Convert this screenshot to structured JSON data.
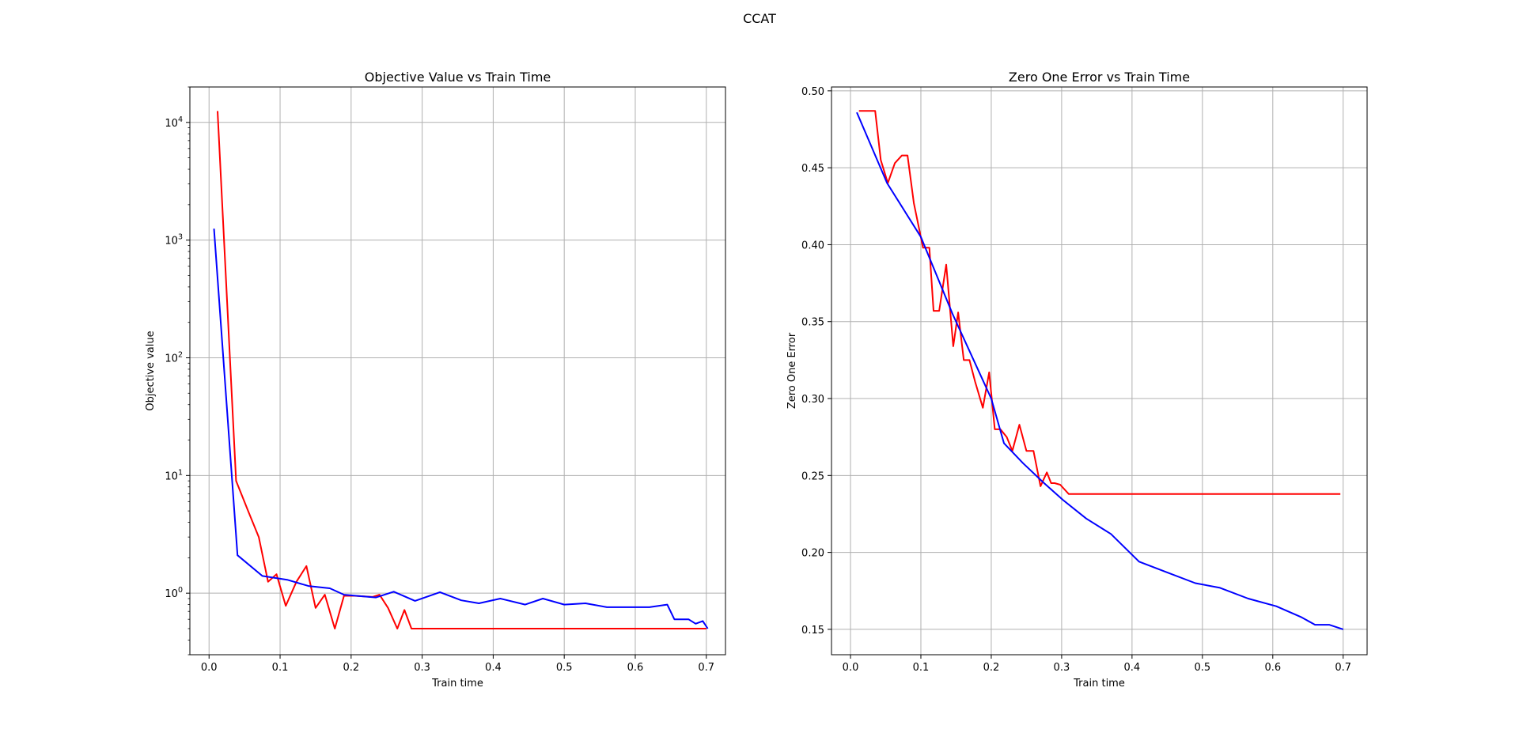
{
  "figure": {
    "title": "CCAT"
  },
  "chart_data": [
    {
      "type": "line",
      "title": "Objective Value vs Train Time",
      "xlabel": "Train time",
      "ylabel": "Objective value",
      "yscale": "log",
      "xlim": [
        -0.027,
        0.727
      ],
      "ylim": [
        0.3,
        20000
      ],
      "xticks": [
        "0.0",
        "0.1",
        "0.2",
        "0.3",
        "0.4",
        "0.5",
        "0.6",
        "0.7"
      ],
      "xtick_values": [
        0,
        0.1,
        0.2,
        0.3,
        0.4,
        0.5,
        0.6,
        0.7
      ],
      "yticks": [
        {
          "base": "10",
          "exp": "0",
          "value": 1
        },
        {
          "base": "10",
          "exp": "1",
          "value": 10
        },
        {
          "base": "10",
          "exp": "2",
          "value": 100
        },
        {
          "base": "10",
          "exp": "3",
          "value": 1000
        },
        {
          "base": "10",
          "exp": "4",
          "value": 10000
        }
      ],
      "grid": true,
      "series": [
        {
          "color": "#ff0000",
          "x": [
            0.012,
            0.038,
            0.055,
            0.07,
            0.083,
            0.095,
            0.108,
            0.123,
            0.137,
            0.15,
            0.163,
            0.177,
            0.19,
            0.205,
            0.23,
            0.24,
            0.252,
            0.265,
            0.275,
            0.285,
            0.3,
            0.4,
            0.5,
            0.6,
            0.7
          ],
          "y": [
            12500,
            9,
            5,
            3,
            1.25,
            1.45,
            0.78,
            1.25,
            1.7,
            0.75,
            0.97,
            0.5,
            0.95,
            0.95,
            0.93,
            0.97,
            0.75,
            0.5,
            0.72,
            0.5,
            0.5,
            0.5,
            0.5,
            0.5,
            0.5
          ]
        },
        {
          "color": "#0000ff",
          "x": [
            0.007,
            0.04,
            0.075,
            0.11,
            0.14,
            0.17,
            0.19,
            0.235,
            0.26,
            0.29,
            0.325,
            0.355,
            0.38,
            0.41,
            0.445,
            0.47,
            0.5,
            0.53,
            0.56,
            0.59,
            0.62,
            0.645,
            0.655,
            0.675,
            0.685,
            0.695,
            0.702
          ],
          "y": [
            1250,
            2.1,
            1.4,
            1.3,
            1.15,
            1.1,
            0.97,
            0.92,
            1.03,
            0.86,
            1.02,
            0.87,
            0.82,
            0.9,
            0.8,
            0.9,
            0.8,
            0.82,
            0.76,
            0.76,
            0.76,
            0.8,
            0.6,
            0.6,
            0.55,
            0.58,
            0.5
          ]
        }
      ]
    },
    {
      "type": "line",
      "title": "Zero One Error vs Train Time",
      "xlabel": "Train time",
      "ylabel": "Zero One Error",
      "yscale": "linear",
      "xlim": [
        -0.027,
        0.734
      ],
      "ylim": [
        0.1335,
        0.5025
      ],
      "xticks": [
        "0.0",
        "0.1",
        "0.2",
        "0.3",
        "0.4",
        "0.5",
        "0.6",
        "0.7"
      ],
      "xtick_values": [
        0,
        0.1,
        0.2,
        0.3,
        0.4,
        0.5,
        0.6,
        0.7
      ],
      "yticks": [
        "0.15",
        "0.20",
        "0.25",
        "0.30",
        "0.35",
        "0.40",
        "0.45",
        "0.50"
      ],
      "ytick_values": [
        0.15,
        0.2,
        0.25,
        0.3,
        0.35,
        0.4,
        0.45,
        0.5
      ],
      "grid": true,
      "series": [
        {
          "color": "#ff0000",
          "x": [
            0.012,
            0.023,
            0.035,
            0.043,
            0.053,
            0.063,
            0.073,
            0.081,
            0.09,
            0.103,
            0.112,
            0.118,
            0.126,
            0.136,
            0.146,
            0.153,
            0.161,
            0.169,
            0.177,
            0.188,
            0.197,
            0.205,
            0.213,
            0.222,
            0.23,
            0.24,
            0.25,
            0.26,
            0.27,
            0.279,
            0.285,
            0.29,
            0.298,
            0.31,
            0.4,
            0.5,
            0.6,
            0.696
          ],
          "y": [
            0.487,
            0.487,
            0.487,
            0.455,
            0.44,
            0.453,
            0.458,
            0.458,
            0.427,
            0.398,
            0.398,
            0.357,
            0.357,
            0.387,
            0.334,
            0.356,
            0.325,
            0.325,
            0.311,
            0.294,
            0.317,
            0.28,
            0.28,
            0.275,
            0.266,
            0.283,
            0.266,
            0.266,
            0.243,
            0.252,
            0.245,
            0.245,
            0.244,
            0.238,
            0.238,
            0.238,
            0.238,
            0.238
          ]
        },
        {
          "color": "#0000ff",
          "x": [
            0.009,
            0.052,
            0.1,
            0.145,
            0.175,
            0.2,
            0.218,
            0.245,
            0.275,
            0.302,
            0.335,
            0.37,
            0.41,
            0.45,
            0.49,
            0.525,
            0.565,
            0.605,
            0.64,
            0.66,
            0.68,
            0.7
          ],
          "y": [
            0.486,
            0.44,
            0.405,
            0.355,
            0.325,
            0.3,
            0.271,
            0.258,
            0.245,
            0.234,
            0.222,
            0.212,
            0.194,
            0.187,
            0.18,
            0.177,
            0.17,
            0.165,
            0.158,
            0.153,
            0.153,
            0.15
          ]
        }
      ]
    }
  ]
}
